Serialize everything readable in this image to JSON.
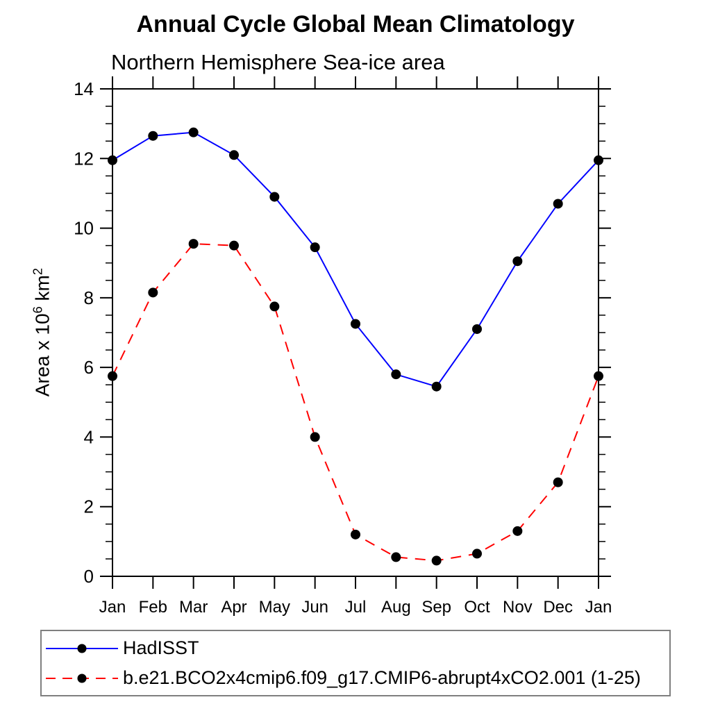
{
  "header": {
    "title": "Annual Cycle Global Mean Climatology",
    "subtitle": "Northern Hemisphere Sea-ice area"
  },
  "y_axis_title": {
    "base1": "Area x 10",
    "sup1": "6",
    "base2": " km",
    "sup2": "2"
  },
  "chart_data": {
    "type": "line",
    "title": "Annual Cycle Global Mean Climatology",
    "subtitle": "Northern Hemisphere Sea-ice area",
    "xlabel": "",
    "ylabel": "Area x 10^6 km^2",
    "ylim": [
      0,
      14
    ],
    "y_major_tick_step": 2,
    "y_minor_tick_step": 0.5,
    "x_categories": [
      "Jan",
      "Feb",
      "Mar",
      "Apr",
      "May",
      "Jun",
      "Jul",
      "Aug",
      "Sep",
      "Oct",
      "Nov",
      "Dec",
      "Jan"
    ],
    "grid": false,
    "legend_position": "bottom-box",
    "axis_color": "#000000",
    "tick_label_color": "#000000",
    "legend_border_color": "#7f7f7f",
    "marker_color": "#000000",
    "series": [
      {
        "name": "HadISST",
        "color": "#0000ff",
        "line_style": "solid",
        "marker": "circle",
        "values": [
          11.95,
          12.65,
          12.75,
          12.1,
          10.9,
          9.45,
          7.25,
          5.8,
          5.45,
          7.1,
          9.05,
          10.7,
          11.95
        ]
      },
      {
        "name": "b.e21.BCO2x4cmip6.f09_g17.CMIP6-abrupt4xCO2.001 (1-25)",
        "color": "#ff0000",
        "line_style": "dashed",
        "marker": "circle",
        "values": [
          5.75,
          8.15,
          9.55,
          9.5,
          7.75,
          4.0,
          1.2,
          0.55,
          0.45,
          0.65,
          1.3,
          2.7,
          5.75
        ]
      }
    ]
  }
}
